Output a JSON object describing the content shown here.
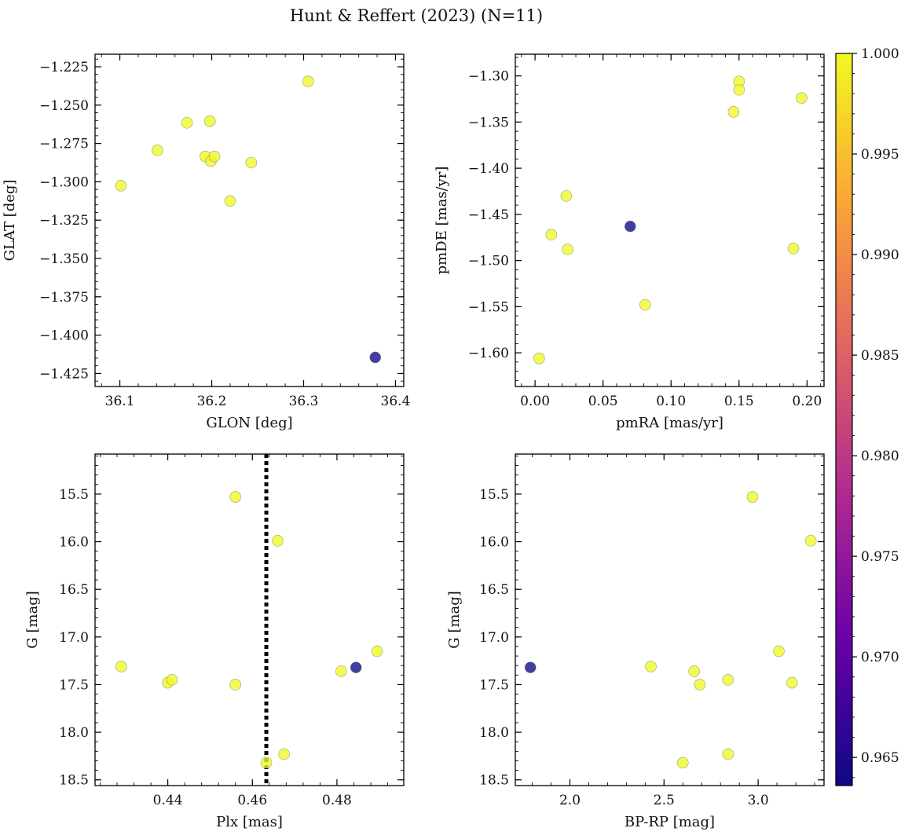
{
  "figure": {
    "title": "Hunt & Reffert (2023) (N=11)"
  },
  "colors": {
    "cmap": [
      "#0d0887",
      "#6a00a8",
      "#b12a90",
      "#e16462",
      "#fca636",
      "#f0f921"
    ],
    "point_alpha": 0.78,
    "edge": "#777777"
  },
  "colorbar": {
    "range": [
      0.9636,
      1.0
    ],
    "ticks": [
      0.965,
      0.97,
      0.975,
      0.98,
      0.985,
      0.99,
      0.995,
      1.0
    ],
    "tick_labels": [
      "0.965",
      "0.970",
      "0.975",
      "0.980",
      "0.985",
      "0.990",
      "0.995",
      "1.000"
    ]
  },
  "chart_data": [
    {
      "type": "scatter",
      "title": "",
      "xlabel": "GLON [deg]",
      "ylabel": "GLAT [deg]",
      "xlim": [
        36.073,
        36.409
      ],
      "ylim": [
        -1.4335,
        -1.2168
      ],
      "xticks": [
        36.1,
        36.2,
        36.3,
        36.4
      ],
      "xtick_labels": [
        "36.1",
        "36.2",
        "36.3",
        "36.4"
      ],
      "yticks": [
        -1.225,
        -1.25,
        -1.275,
        -1.3,
        -1.325,
        -1.35,
        -1.375,
        -1.4,
        -1.425
      ],
      "ytick_labels": [
        "−1.225",
        "−1.250",
        "−1.275",
        "−1.300",
        "−1.325",
        "−1.350",
        "−1.375",
        "−1.400",
        "−1.425"
      ],
      "points": [
        {
          "x": 36.101,
          "y": -1.3025,
          "p": 1.0
        },
        {
          "x": 36.141,
          "y": -1.2795,
          "p": 1.0
        },
        {
          "x": 36.173,
          "y": -1.2615,
          "p": 1.0
        },
        {
          "x": 36.193,
          "y": -1.2835,
          "p": 1.0
        },
        {
          "x": 36.198,
          "y": -1.2605,
          "p": 1.0
        },
        {
          "x": 36.199,
          "y": -1.2865,
          "p": 1.0
        },
        {
          "x": 36.203,
          "y": -1.2835,
          "p": 1.0
        },
        {
          "x": 36.22,
          "y": -1.3125,
          "p": 1.0
        },
        {
          "x": 36.243,
          "y": -1.2875,
          "p": 1.0
        },
        {
          "x": 36.305,
          "y": -1.2345,
          "p": 1.0
        },
        {
          "x": 36.378,
          "y": -1.4145,
          "p": 0.9636
        }
      ]
    },
    {
      "type": "scatter",
      "title": "",
      "xlabel": "pmRA [mas/yr]",
      "ylabel": "pmDE [mas/yr]",
      "xlim": [
        -0.0145,
        0.2125
      ],
      "ylim": [
        -1.6365,
        -1.2765
      ],
      "xticks": [
        0.0,
        0.05,
        0.1,
        0.15,
        0.2
      ],
      "xtick_labels": [
        "0.00",
        "0.05",
        "0.10",
        "0.15",
        "0.20"
      ],
      "yticks": [
        -1.3,
        -1.35,
        -1.4,
        -1.45,
        -1.5,
        -1.55,
        -1.6
      ],
      "ytick_labels": [
        "−1.30",
        "−1.35",
        "−1.40",
        "−1.45",
        "−1.50",
        "−1.55",
        "−1.60"
      ],
      "points": [
        {
          "x": 0.003,
          "y": -1.606,
          "p": 1.0
        },
        {
          "x": 0.012,
          "y": -1.472,
          "p": 1.0
        },
        {
          "x": 0.023,
          "y": -1.43,
          "p": 1.0
        },
        {
          "x": 0.024,
          "y": -1.488,
          "p": 1.0
        },
        {
          "x": 0.07,
          "y": -1.463,
          "p": 0.9636
        },
        {
          "x": 0.081,
          "y": -1.548,
          "p": 1.0
        },
        {
          "x": 0.146,
          "y": -1.339,
          "p": 1.0
        },
        {
          "x": 0.15,
          "y": -1.306,
          "p": 1.0
        },
        {
          "x": 0.15,
          "y": -1.315,
          "p": 1.0
        },
        {
          "x": 0.19,
          "y": -1.487,
          "p": 1.0
        },
        {
          "x": 0.196,
          "y": -1.324,
          "p": 1.0
        }
      ]
    },
    {
      "type": "scatter",
      "title": "",
      "xlabel": "Plx [mas]",
      "ylabel": "G [mag]",
      "xlim": [
        0.4228,
        0.4958
      ],
      "ylim": [
        18.56,
        15.08
      ],
      "xticks": [
        0.44,
        0.46,
        0.48
      ],
      "xtick_labels": [
        "0.44",
        "0.46",
        "0.48"
      ],
      "yticks": [
        15.5,
        16.0,
        16.5,
        17.0,
        17.5,
        18.0,
        18.5
      ],
      "ytick_labels": [
        "15.5",
        "16.0",
        "16.5",
        "17.0",
        "17.5",
        "18.0",
        "18.5"
      ],
      "vline": 0.4633,
      "points": [
        {
          "x": 0.429,
          "y": 17.31,
          "p": 1.0
        },
        {
          "x": 0.44,
          "y": 17.48,
          "p": 1.0
        },
        {
          "x": 0.441,
          "y": 17.45,
          "p": 1.0
        },
        {
          "x": 0.456,
          "y": 15.53,
          "p": 1.0
        },
        {
          "x": 0.456,
          "y": 17.5,
          "p": 1.0
        },
        {
          "x": 0.4633,
          "y": 18.32,
          "p": 1.0
        },
        {
          "x": 0.466,
          "y": 15.99,
          "p": 1.0
        },
        {
          "x": 0.4675,
          "y": 18.23,
          "p": 1.0
        },
        {
          "x": 0.481,
          "y": 17.36,
          "p": 1.0
        },
        {
          "x": 0.4845,
          "y": 17.32,
          "p": 0.9636
        },
        {
          "x": 0.4895,
          "y": 17.15,
          "p": 1.0
        }
      ]
    },
    {
      "type": "scatter",
      "title": "",
      "xlabel": "BP-RP [mag]",
      "ylabel": "G [mag]",
      "xlim": [
        1.71,
        3.35
      ],
      "ylim": [
        18.56,
        15.08
      ],
      "xticks": [
        2.0,
        2.5,
        3.0
      ],
      "xtick_labels": [
        "2.0",
        "2.5",
        "3.0"
      ],
      "yticks": [
        15.5,
        16.0,
        16.5,
        17.0,
        17.5,
        18.0,
        18.5
      ],
      "ytick_labels": [
        "15.5",
        "16.0",
        "16.5",
        "17.0",
        "17.5",
        "18.0",
        "18.5"
      ],
      "points": [
        {
          "x": 1.79,
          "y": 17.32,
          "p": 0.9636
        },
        {
          "x": 2.43,
          "y": 17.31,
          "p": 1.0
        },
        {
          "x": 2.6,
          "y": 18.32,
          "p": 1.0
        },
        {
          "x": 2.66,
          "y": 17.36,
          "p": 1.0
        },
        {
          "x": 2.69,
          "y": 17.5,
          "p": 1.0
        },
        {
          "x": 2.84,
          "y": 17.45,
          "p": 1.0
        },
        {
          "x": 2.84,
          "y": 18.23,
          "p": 1.0
        },
        {
          "x": 2.97,
          "y": 15.53,
          "p": 1.0
        },
        {
          "x": 3.11,
          "y": 17.15,
          "p": 1.0
        },
        {
          "x": 3.18,
          "y": 17.48,
          "p": 1.0
        },
        {
          "x": 3.28,
          "y": 15.99,
          "p": 1.0
        }
      ]
    }
  ]
}
